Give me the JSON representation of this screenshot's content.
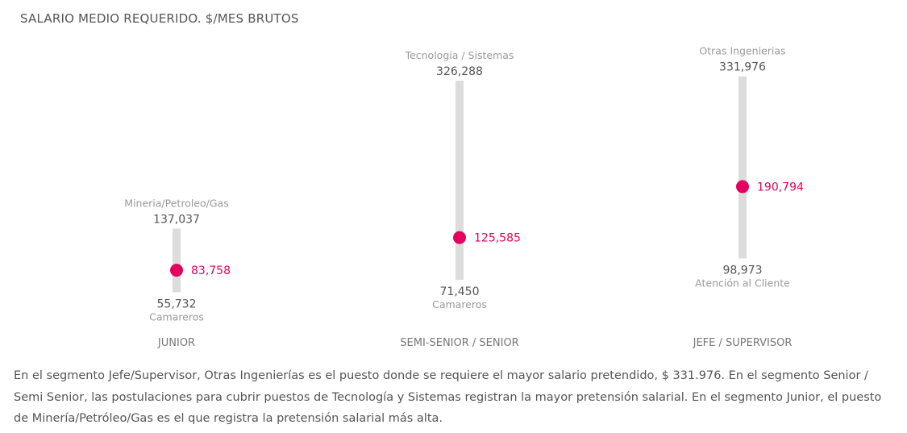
{
  "chart_data": {
    "type": "range-dot",
    "title": "SALARIO MEDIO REQUERIDO. $/MES BRUTOS",
    "categories": [
      "JUNIOR",
      "SEMI-SENIOR / SENIOR",
      "JEFE / SUPERVISOR"
    ],
    "series": [
      {
        "category": "JUNIOR",
        "max": 137037,
        "max_label": "137,037",
        "max_job": "Mineria/Petroleo/Gas",
        "min": 55732,
        "min_label": "55,732",
        "min_job": "Camareros",
        "avg": 83758,
        "avg_label": "83,758"
      },
      {
        "category": "SEMI-SENIOR / SENIOR",
        "max": 326288,
        "max_label": "326,288",
        "max_job": "Tecnologia / Sistemas",
        "min": 71450,
        "min_label": "71,450",
        "min_job": "Camareros",
        "avg": 125585,
        "avg_label": "125,585"
      },
      {
        "category": "JEFE / SUPERVISOR",
        "max": 331976,
        "max_label": "331,976",
        "max_job": "Otras Ingenierias",
        "min": 98973,
        "min_label": "98,973",
        "min_job": "Atención al Cliente",
        "avg": 190794,
        "avg_label": "190,794"
      }
    ],
    "colors": {
      "bar": "#dcdcdc",
      "dot": "#e5005f",
      "value": "#555555",
      "job": "#999999"
    }
  },
  "description": "En el segmento Jefe/Supervisor, Otras Ingenierías es el puesto donde se requiere el mayor salario pretendido, $ 331.976. En el segmento Senior / Semi Senior, las postulaciones para cubrir puestos de Tecnología y Sistemas registran la mayor pretensión salarial. En el segmento Junior, el puesto de Minería/Petróleo/Gas es el que registra la pretensión salarial más alta."
}
